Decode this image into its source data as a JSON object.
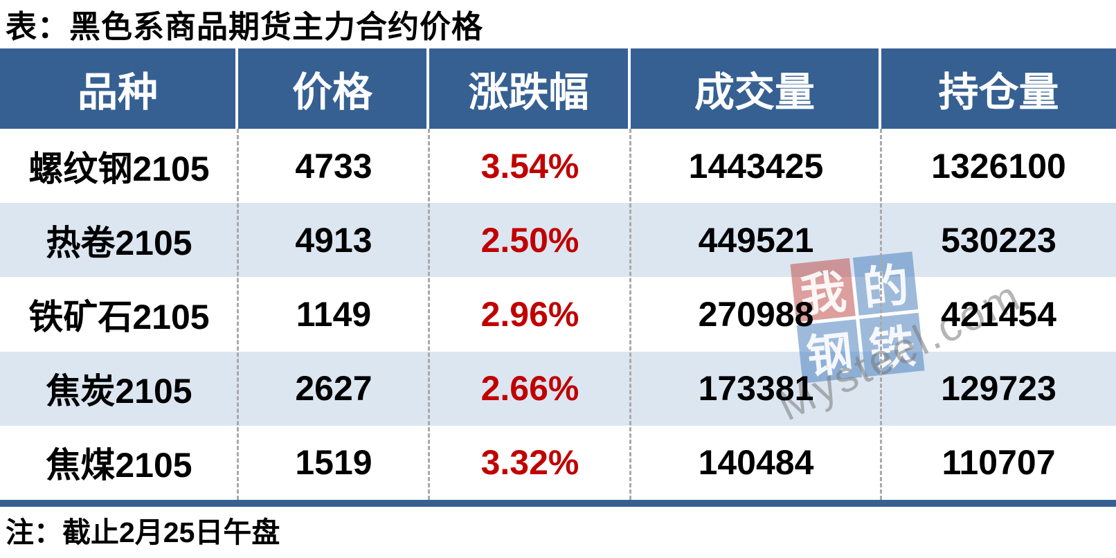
{
  "chart_data": {
    "type": "table",
    "title": "表：黑色系商品期货主力合约价格",
    "columns": [
      "品种",
      "价格",
      "涨跌幅",
      "成交量",
      "持仓量"
    ],
    "rows": [
      [
        "螺纹钢2105",
        4733,
        "3.54%",
        1443425,
        1326100
      ],
      [
        "热卷2105",
        4913,
        "2.50%",
        449521,
        530223
      ],
      [
        "铁矿石2105",
        1149,
        "2.96%",
        270988,
        421454
      ],
      [
        "焦炭2105",
        2627,
        "2.66%",
        173381,
        129723
      ],
      [
        "焦煤2105",
        1519,
        "3.32%",
        140484,
        110707
      ]
    ],
    "note": "注：截止2月25日午盘",
    "layout_hints": {
      "change_column_color": "#C00000",
      "header_bg": "#366092",
      "alt_row_bg": "#DCE6F1",
      "divider_bar_color": "#366092",
      "body_column_dividers": "dashed"
    }
  },
  "watermark": {
    "logo_chars": [
      "我",
      "的",
      "钢",
      "铁"
    ],
    "brand": "Mysteel.com",
    "logo_red": "#C0504D",
    "logo_blue": "#4F81BD"
  }
}
